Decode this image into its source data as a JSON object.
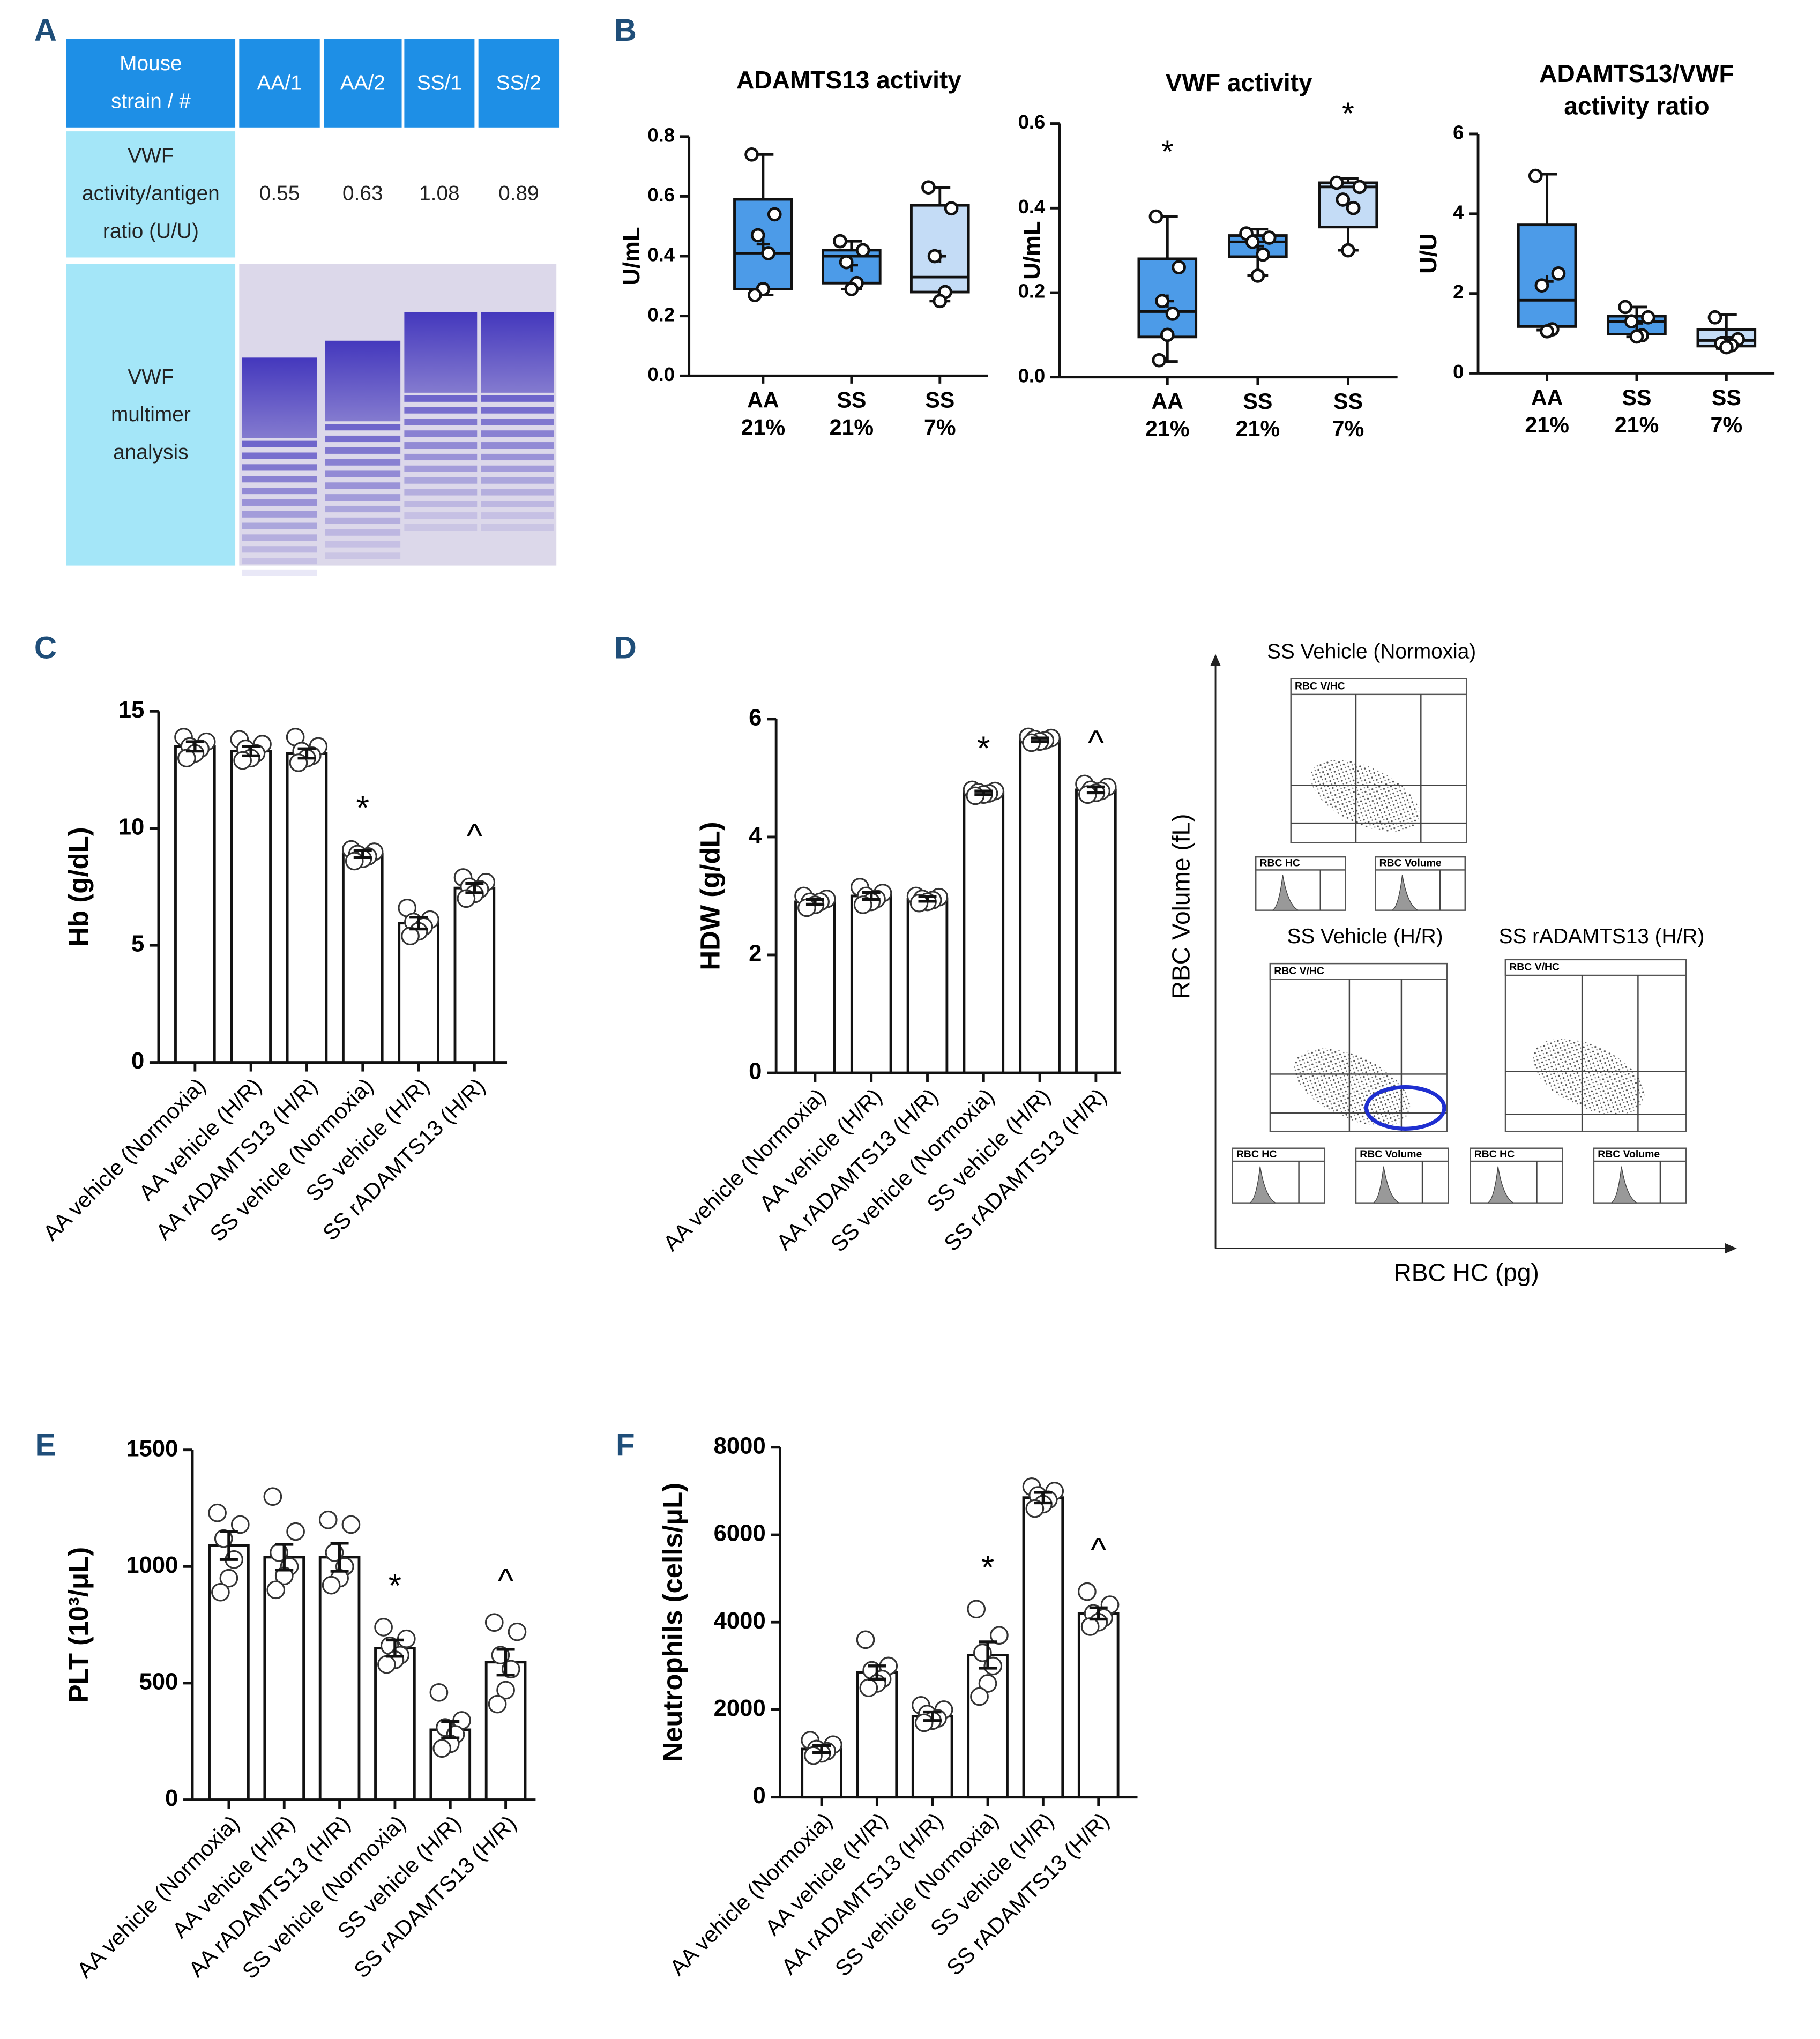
{
  "panel_labels": [
    "A",
    "B",
    "C",
    "D",
    "E",
    "F"
  ],
  "table": {
    "header": [
      "Mouse strain / #",
      "AA/1",
      "AA/2",
      "SS/1",
      "SS/2"
    ],
    "rows": [
      [
        "VWF activity/antigen ratio (U/U)",
        0.55,
        0.63,
        1.08,
        0.89
      ],
      [
        "VWF multimer analysis"
      ]
    ]
  },
  "flow": {
    "titles": [
      "SS Vehicle (Normoxia)",
      "SS Vehicle (H/R)",
      "SS rADAMTS13 (H/R)"
    ],
    "ylabel": "RBC Volume (fL)",
    "xlabel": "RBC HC (pg)",
    "gate_label": "RBC V/HC",
    "hc_label": "RBC HC",
    "volume_label": "RBC Volume"
  },
  "chart_data": [
    {
      "type": "box",
      "title": [
        "ADAMTS13 activity"
      ],
      "ylabel": "U/mL",
      "categories": [
        [
          "AA",
          "21%"
        ],
        [
          "SS",
          "21%"
        ],
        [
          "SS",
          "7%"
        ]
      ],
      "colors": [
        "#4c9be8",
        "#4c9be8",
        "#c4dcf6"
      ],
      "ylim": [
        0,
        0.8
      ],
      "yticks": [
        {
          "value": 0,
          "label": "0.0"
        },
        0.2,
        0.4,
        0.6,
        0.8
      ],
      "boxes": [
        {
          "min": 0.27,
          "q1": 0.29,
          "median": 0.41,
          "q3": 0.59,
          "max": 0.74,
          "mean": 0.44
        },
        {
          "min": 0.29,
          "q1": 0.31,
          "median": 0.4,
          "q3": 0.42,
          "max": 0.45,
          "mean": 0.37
        },
        {
          "min": 0.25,
          "q1": 0.28,
          "median": 0.33,
          "q3": 0.57,
          "max": 0.63,
          "mean": 0.4
        }
      ],
      "points": [
        [
          0.74,
          0.54,
          0.47,
          0.41,
          0.29,
          0.27
        ],
        [
          0.45,
          0.42,
          0.38,
          0.31,
          0.29
        ],
        [
          0.63,
          0.56,
          0.4,
          0.28,
          0.25
        ]
      ],
      "markers": [
        null,
        null,
        null
      ]
    },
    {
      "type": "box",
      "title": [
        "VWF activity"
      ],
      "ylabel": "U/mL",
      "categories": [
        [
          "AA",
          "21%"
        ],
        [
          "SS",
          "21%"
        ],
        [
          "SS",
          "7%"
        ]
      ],
      "colors": [
        "#4c9be8",
        "#4c9be8",
        "#c4dcf6"
      ],
      "ylim": [
        0,
        0.6
      ],
      "yticks": [
        {
          "value": 0,
          "label": "0.0"
        },
        0.2,
        0.4,
        0.6
      ],
      "boxes": [
        {
          "min": 0.037,
          "q1": 0.095,
          "median": 0.155,
          "q3": 0.28,
          "max": 0.38,
          "mean": 0.18
        },
        {
          "min": 0.24,
          "q1": 0.285,
          "median": 0.32,
          "q3": 0.335,
          "max": 0.35,
          "mean": 0.31
        },
        {
          "min": 0.3,
          "q1": 0.355,
          "median": 0.45,
          "q3": 0.46,
          "max": 0.47,
          "mean": 0.41
        }
      ],
      "points": [
        [
          0.38,
          0.26,
          0.18,
          0.15,
          0.1,
          0.04
        ],
        [
          0.34,
          0.33,
          0.32,
          0.29,
          0.24
        ],
        [
          0.46,
          0.45,
          0.42,
          0.4,
          0.3
        ]
      ],
      "markers": [
        "*",
        null,
        "*"
      ]
    },
    {
      "type": "box",
      "title": [
        "ADAMTS13/VWF",
        "activity ratio"
      ],
      "ylabel": "U/U",
      "categories": [
        [
          "AA",
          "21%"
        ],
        [
          "SS",
          "21%"
        ],
        [
          "SS",
          "7%"
        ]
      ],
      "colors": [
        "#4c9be8",
        "#4c9be8",
        "#c4dcf6"
      ],
      "ylim": [
        0,
        6
      ],
      "yticks": [
        0,
        2,
        4,
        6
      ],
      "boxes": [
        {
          "min": 1.08,
          "q1": 1.17,
          "median": 1.83,
          "q3": 3.72,
          "max": 4.99,
          "mean": 2.3
        },
        {
          "min": 0.91,
          "q1": 0.98,
          "median": 1.3,
          "q3": 1.43,
          "max": 1.66,
          "mean": 1.25
        },
        {
          "min": 0.62,
          "q1": 0.68,
          "median": 0.82,
          "q3": 1.1,
          "max": 1.47,
          "mean": 0.9
        }
      ],
      "points": [
        [
          4.95,
          2.5,
          2.2,
          1.1,
          1.05
        ],
        [
          1.66,
          1.4,
          1.3,
          0.95,
          0.92
        ],
        [
          1.4,
          0.85,
          0.75,
          0.7,
          0.65
        ]
      ],
      "markers": [
        null,
        null,
        null
      ]
    },
    {
      "type": "bar",
      "ylabel": "Hb (g/dL)",
      "categories": [
        "AA vehicle (Normoxia)",
        "AA vehicle (H/R)",
        "AA rADAMTS13 (H/R)",
        "SS vehicle (Normoxia)",
        "SS vehicle (H/R)",
        "SS rADAMTS13 (H/R)"
      ],
      "ylim": [
        0,
        15
      ],
      "yticks": [
        0,
        5,
        10,
        15
      ],
      "values": [
        13.5,
        13.3,
        13.2,
        8.9,
        5.95,
        7.45
      ],
      "errors": [
        0.2,
        0.2,
        0.2,
        0.15,
        0.25,
        0.2
      ],
      "points": [
        [
          13.9,
          13.7,
          13.5,
          13.4,
          13.2,
          13.0
        ],
        [
          13.8,
          13.6,
          13.4,
          13.2,
          13.0,
          12.9
        ],
        [
          13.9,
          13.5,
          13.3,
          13.1,
          13.0,
          12.8
        ],
        [
          9.1,
          9.0,
          8.9,
          8.8,
          8.7,
          8.6
        ],
        [
          6.6,
          6.1,
          6.0,
          5.8,
          5.6,
          5.4
        ],
        [
          7.9,
          7.7,
          7.5,
          7.4,
          7.2,
          7.0
        ]
      ],
      "markers": [
        null,
        null,
        null,
        "*",
        null,
        "^"
      ]
    },
    {
      "type": "bar",
      "ylabel": "HDW (g/dL)",
      "categories": [
        "AA vehicle (Normoxia)",
        "AA vehicle (H/R)",
        "AA rADAMTS13 (H/R)",
        "SS vehicle (Normoxia)",
        "SS vehicle (H/R)",
        "SS rADAMTS13 (H/R)"
      ],
      "ylim": [
        0,
        6
      ],
      "yticks": [
        0,
        2,
        4,
        6
      ],
      "values": [
        2.9,
        3.0,
        2.95,
        4.75,
        5.65,
        4.8
      ],
      "errors": [
        0.04,
        0.06,
        0.04,
        0.03,
        0.03,
        0.05
      ],
      "points": [
        [
          3.0,
          2.95,
          2.9,
          2.9,
          2.85,
          2.8
        ],
        [
          3.15,
          3.05,
          3.0,
          2.95,
          2.9,
          2.85
        ],
        [
          3.0,
          2.98,
          2.95,
          2.93,
          2.9,
          2.88
        ],
        [
          4.8,
          4.78,
          4.76,
          4.74,
          4.72,
          4.7
        ],
        [
          5.7,
          5.68,
          5.66,
          5.64,
          5.62,
          5.6
        ],
        [
          4.9,
          4.85,
          4.8,
          4.78,
          4.75,
          4.72
        ]
      ],
      "markers": [
        null,
        null,
        null,
        "*",
        null,
        "^"
      ]
    },
    {
      "type": "bar",
      "ylabel": "PLT (10³/μL)",
      "categories": [
        "AA vehicle (Normoxia)",
        "AA vehicle (H/R)",
        "AA rADAMTS13 (H/R)",
        "SS vehicle (Normoxia)",
        "SS vehicle (H/R)",
        "SS rADAMTS13 (H/R)"
      ],
      "ylim": [
        0,
        1500
      ],
      "yticks": [
        0,
        500,
        1000,
        1500
      ],
      "values": [
        1090,
        1040,
        1040,
        650,
        300,
        590
      ],
      "errors": [
        60,
        55,
        60,
        35,
        35,
        55
      ],
      "points": [
        [
          1230,
          1180,
          1120,
          1030,
          950,
          890
        ],
        [
          1300,
          1150,
          1060,
          1000,
          960,
          900
        ],
        [
          1200,
          1180,
          1060,
          1000,
          950,
          920
        ],
        [
          740,
          690,
          660,
          620,
          600,
          580
        ],
        [
          460,
          340,
          310,
          280,
          240,
          220
        ],
        [
          760,
          720,
          620,
          560,
          470,
          410
        ]
      ],
      "markers": [
        null,
        null,
        null,
        "*",
        null,
        "^"
      ]
    },
    {
      "type": "bar",
      "ylabel": "Neutrophils (cells/μL)",
      "categories": [
        "AA vehicle (Normoxia)",
        "AA vehicle (H/R)",
        "AA rADAMTS13 (H/R)",
        "SS vehicle (Normoxia)",
        "SS vehicle (H/R)",
        "SS rADAMTS13 (H/R)"
      ],
      "ylim": [
        0,
        8000
      ],
      "yticks": [
        0,
        2000,
        4000,
        6000,
        8000
      ],
      "values": [
        1100,
        2850,
        1850,
        3250,
        6850,
        4200
      ],
      "errors": [
        80,
        150,
        100,
        300,
        120,
        130
      ],
      "points": [
        [
          1300,
          1200,
          1100,
          1050,
          1000,
          950
        ],
        [
          3600,
          3000,
          2900,
          2700,
          2600,
          2500
        ],
        [
          2100,
          2000,
          1900,
          1800,
          1750,
          1700
        ],
        [
          4300,
          3700,
          3300,
          3000,
          2600,
          2300
        ],
        [
          7100,
          7000,
          6900,
          6800,
          6700,
          6600
        ],
        [
          4700,
          4400,
          4200,
          4100,
          4000,
          3900
        ]
      ],
      "markers": [
        null,
        null,
        null,
        "*",
        null,
        "^"
      ]
    }
  ]
}
